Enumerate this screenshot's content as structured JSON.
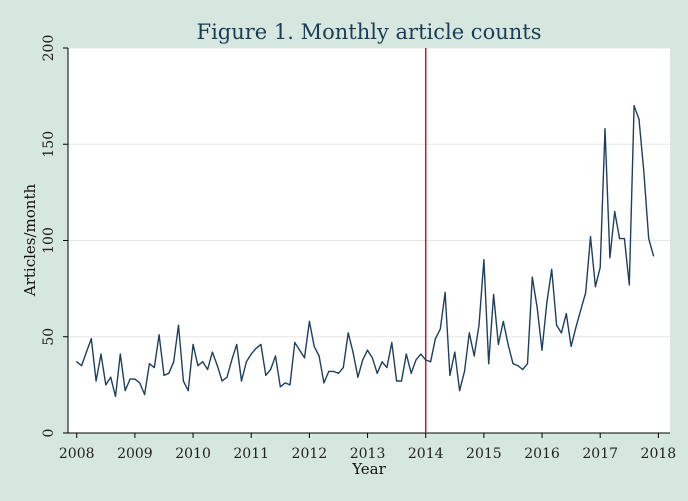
{
  "chart_data": {
    "type": "line",
    "title": "Figure 1. Monthly article counts",
    "xlabel": "Year",
    "ylabel": "Articles/month",
    "xlim": [
      2007.85,
      2018.2
    ],
    "ylim": [
      0,
      200
    ],
    "x_ticks": [
      "2008",
      "2009",
      "2010",
      "2011",
      "2012",
      "2013",
      "2014",
      "2015",
      "2016",
      "2017",
      "2018"
    ],
    "y_ticks": [
      "0",
      "50",
      "100",
      "150",
      "200"
    ],
    "grid": true,
    "legend": "none",
    "vline": {
      "x": 2014,
      "color": "#b22040"
    },
    "line_color": "#1f3f5f",
    "background": "#d5e7df",
    "plot_background": "#ffffff",
    "start": "2008-01",
    "values": [
      37,
      35,
      42,
      49,
      27,
      41,
      25,
      29,
      19,
      41,
      22,
      28,
      28,
      26,
      20,
      36,
      34,
      51,
      30,
      31,
      37,
      56,
      27,
      22,
      46,
      35,
      37,
      33,
      42,
      35,
      27,
      29,
      38,
      46,
      27,
      37,
      41,
      44,
      46,
      30,
      33,
      40,
      24,
      26,
      25,
      47,
      43,
      39,
      58,
      45,
      40,
      26,
      32,
      32,
      31,
      34,
      52,
      42,
      29,
      38,
      43,
      39,
      31,
      37,
      34,
      47,
      27,
      27,
      41,
      31,
      38,
      41,
      38,
      37,
      49,
      54,
      73,
      30,
      42,
      22,
      32,
      52,
      40,
      56,
      90,
      36,
      72,
      46,
      58,
      46,
      36,
      35,
      33,
      36,
      81,
      65,
      43,
      68,
      85,
      56,
      52,
      62,
      45,
      55,
      64,
      73,
      102,
      76,
      86,
      158,
      91,
      115,
      101,
      101,
      77,
      170,
      163,
      136,
      101,
      92
    ]
  }
}
